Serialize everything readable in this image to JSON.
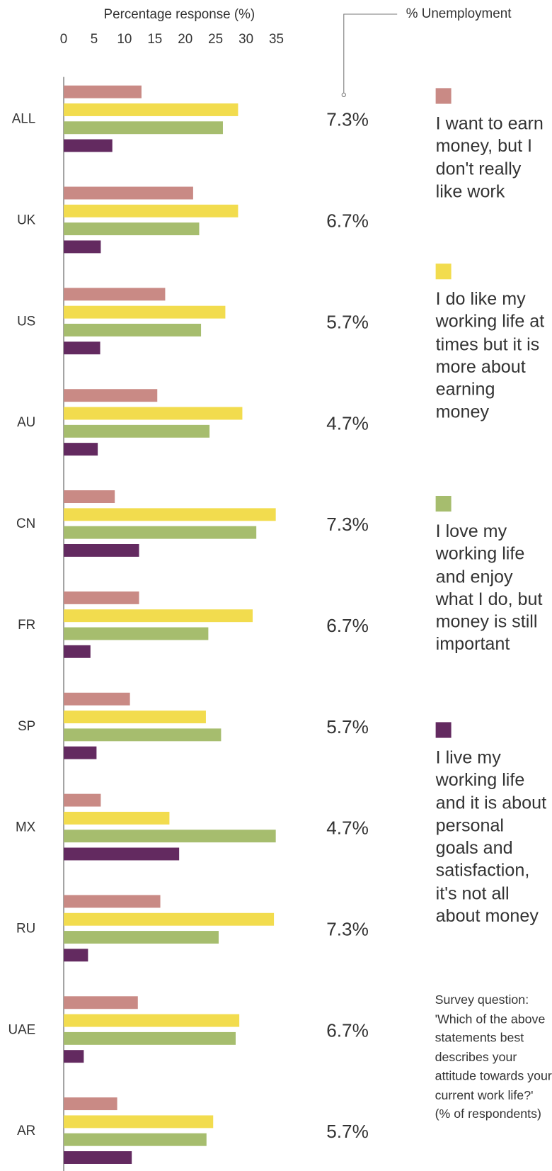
{
  "chart_data": {
    "type": "bar",
    "orientation": "horizontal",
    "x_axis_label": "Percentage response (%)",
    "xlim": [
      0,
      35
    ],
    "xticks": [
      0,
      5,
      10,
      15,
      20,
      25,
      30,
      35
    ],
    "categories": [
      "ALL",
      "UK",
      "US",
      "AU",
      "CN",
      "FR",
      "SP",
      "MX",
      "RU",
      "UAE",
      "AR"
    ],
    "series": [
      {
        "name": "I want to earn money, but I don't really like work",
        "color": "#c98a85",
        "values": [
          12.8,
          21.3,
          16.7,
          15.4,
          8.4,
          12.4,
          10.9,
          6.1,
          15.9,
          12.2,
          8.8
        ]
      },
      {
        "name": "I do like my working life at times but it is more about earning money",
        "color": "#f2dc4e",
        "values": [
          28.7,
          28.7,
          26.6,
          29.4,
          34.9,
          31.1,
          23.4,
          17.4,
          34.6,
          28.9,
          24.6
        ]
      },
      {
        "name": "I love my working life and enjoy what I do, but money is still important",
        "color": "#a6bd6e",
        "values": [
          26.2,
          22.3,
          22.6,
          24.0,
          31.7,
          23.8,
          25.9,
          34.9,
          25.5,
          28.3,
          23.5
        ]
      },
      {
        "name": "I live my working life and it is about personal goals and satisfaction, it's not all about money",
        "color": "#632a60",
        "values": [
          8.0,
          6.1,
          6.0,
          5.6,
          12.4,
          4.4,
          5.4,
          19.0,
          4.0,
          3.3,
          11.2
        ]
      }
    ],
    "unemployment_title": "% Unemployment",
    "unemployment": [
      "7.3%",
      "6.7%",
      "5.7%",
      "4.7%",
      "7.3%",
      "6.7%",
      "5.7%",
      "4.7%",
      "7.3%",
      "6.7%",
      "5.7%"
    ],
    "note": "Survey question: 'Which of the above statements best describes your attitude towards your current work life?' (% of respondents)"
  }
}
